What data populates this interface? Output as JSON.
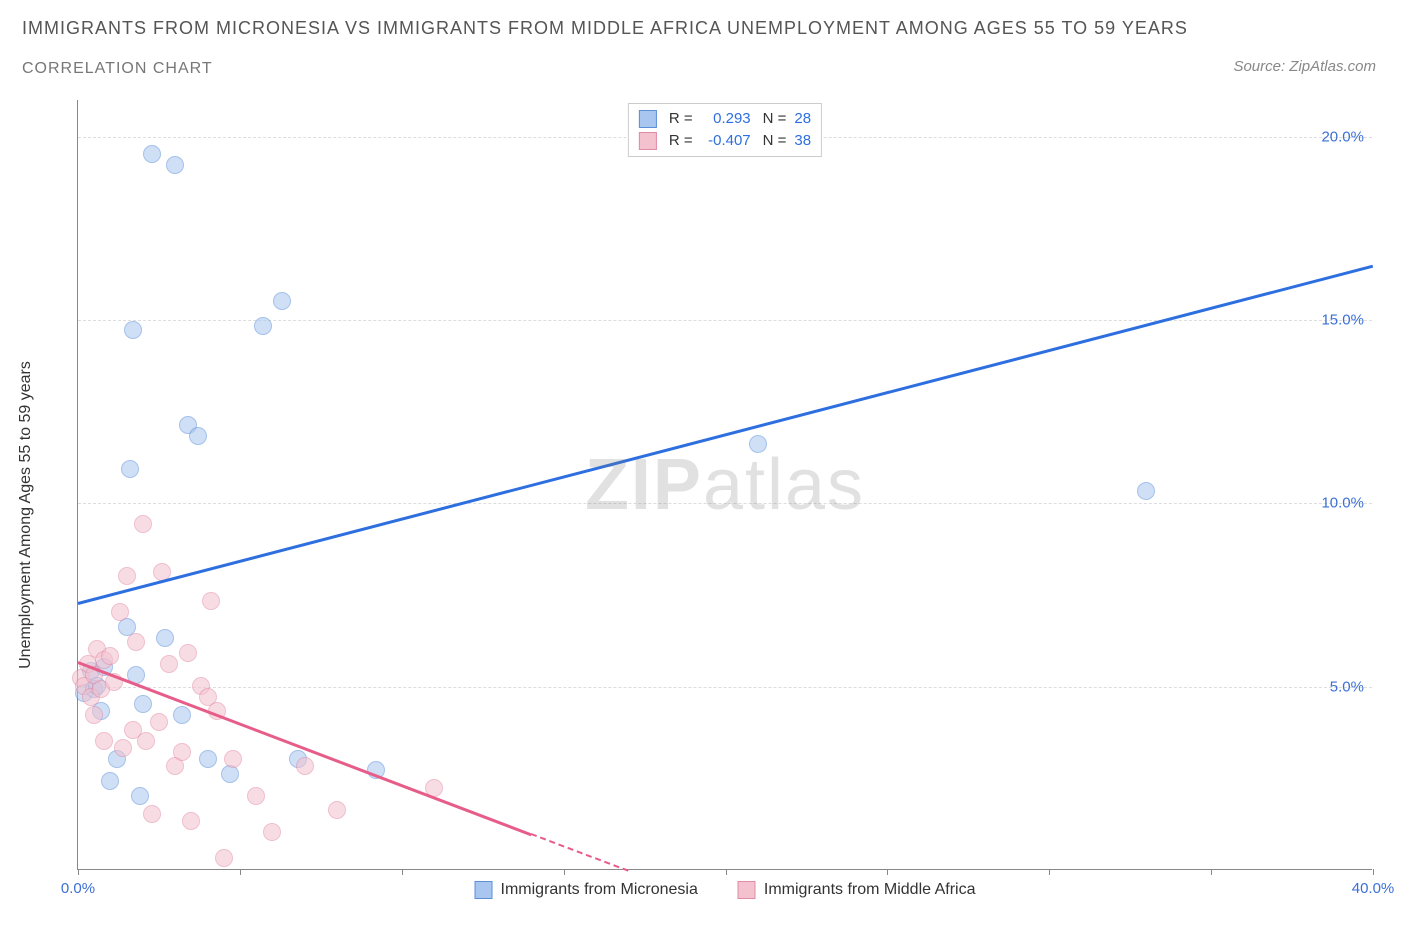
{
  "title": "IMMIGRANTS FROM MICRONESIA VS IMMIGRANTS FROM MIDDLE AFRICA UNEMPLOYMENT AMONG AGES 55 TO 59 YEARS",
  "subtitle": "CORRELATION CHART",
  "source": "Source: ZipAtlas.com",
  "watermark_bold": "ZIP",
  "watermark_rest": "atlas",
  "y_axis_label": "Unemployment Among Ages 55 to 59 years",
  "chart": {
    "type": "scatter",
    "xlim": [
      0,
      40
    ],
    "ylim": [
      0,
      21
    ],
    "x_ticks": [
      0,
      5,
      10,
      15,
      20,
      25,
      30,
      35,
      40
    ],
    "x_tick_labels": [
      "0.0%",
      "",
      "",
      "",
      "",
      "",
      "",
      "",
      "40.0%"
    ],
    "y_ticks": [
      5,
      10,
      15,
      20
    ],
    "y_tick_labels": [
      "5.0%",
      "10.0%",
      "15.0%",
      "20.0%"
    ],
    "grid_color": "#dddddd",
    "background_color": "#ffffff",
    "x_tick_label_color_left": "#3b6fd6",
    "x_tick_label_color_right": "#3b6fd6",
    "y_tick_label_color": "#3b6fd6",
    "point_radius": 9,
    "point_opacity": 0.55,
    "series": [
      {
        "name": "Immigrants from Micronesia",
        "color_fill": "#a9c6f0",
        "color_stroke": "#5b8fd8",
        "R": "0.293",
        "N": "28",
        "trend": {
          "x1": 0,
          "y1": 7.3,
          "x2": 40,
          "y2": 16.5,
          "color": "#2e6fe0",
          "width": 3
        },
        "points": [
          {
            "x": 0.2,
            "y": 4.8
          },
          {
            "x": 0.4,
            "y": 5.4
          },
          {
            "x": 0.5,
            "y": 4.9
          },
          {
            "x": 0.6,
            "y": 5.0
          },
          {
            "x": 0.7,
            "y": 4.3
          },
          {
            "x": 0.8,
            "y": 5.5
          },
          {
            "x": 1.0,
            "y": 2.4
          },
          {
            "x": 1.2,
            "y": 3.0
          },
          {
            "x": 1.5,
            "y": 6.6
          },
          {
            "x": 1.6,
            "y": 10.9
          },
          {
            "x": 1.7,
            "y": 14.7
          },
          {
            "x": 1.8,
            "y": 5.3
          },
          {
            "x": 1.9,
            "y": 2.0
          },
          {
            "x": 2.0,
            "y": 4.5
          },
          {
            "x": 2.3,
            "y": 19.5
          },
          {
            "x": 2.7,
            "y": 6.3
          },
          {
            "x": 3.0,
            "y": 19.2
          },
          {
            "x": 3.2,
            "y": 4.2
          },
          {
            "x": 3.4,
            "y": 12.1
          },
          {
            "x": 3.7,
            "y": 11.8
          },
          {
            "x": 4.0,
            "y": 3.0
          },
          {
            "x": 4.7,
            "y": 2.6
          },
          {
            "x": 5.7,
            "y": 14.8
          },
          {
            "x": 6.3,
            "y": 15.5
          },
          {
            "x": 6.8,
            "y": 3.0
          },
          {
            "x": 9.2,
            "y": 2.7
          },
          {
            "x": 21.0,
            "y": 11.6
          },
          {
            "x": 33.0,
            "y": 10.3
          }
        ]
      },
      {
        "name": "Immigrants from Middle Africa",
        "color_fill": "#f4c1cf",
        "color_stroke": "#e28ba4",
        "R": "-0.407",
        "N": "38",
        "trend": {
          "x1": 0,
          "y1": 5.7,
          "x2": 14,
          "y2": 1.0,
          "color": "#e75d8a",
          "width": 2.5,
          "dash_x1": 14,
          "dash_y1": 1.0,
          "dash_x2": 17,
          "dash_y2": 0
        },
        "points": [
          {
            "x": 0.1,
            "y": 5.2
          },
          {
            "x": 0.2,
            "y": 5.0
          },
          {
            "x": 0.3,
            "y": 5.6
          },
          {
            "x": 0.4,
            "y": 4.7
          },
          {
            "x": 0.5,
            "y": 5.3
          },
          {
            "x": 0.5,
            "y": 4.2
          },
          {
            "x": 0.6,
            "y": 6.0
          },
          {
            "x": 0.7,
            "y": 4.9
          },
          {
            "x": 0.8,
            "y": 5.7
          },
          {
            "x": 0.8,
            "y": 3.5
          },
          {
            "x": 1.0,
            "y": 5.8
          },
          {
            "x": 1.1,
            "y": 5.1
          },
          {
            "x": 1.3,
            "y": 7.0
          },
          {
            "x": 1.4,
            "y": 3.3
          },
          {
            "x": 1.5,
            "y": 8.0
          },
          {
            "x": 1.7,
            "y": 3.8
          },
          {
            "x": 1.8,
            "y": 6.2
          },
          {
            "x": 2.0,
            "y": 9.4
          },
          {
            "x": 2.1,
            "y": 3.5
          },
          {
            "x": 2.3,
            "y": 1.5
          },
          {
            "x": 2.5,
            "y": 4.0
          },
          {
            "x": 2.6,
            "y": 8.1
          },
          {
            "x": 2.8,
            "y": 5.6
          },
          {
            "x": 3.0,
            "y": 2.8
          },
          {
            "x": 3.2,
            "y": 3.2
          },
          {
            "x": 3.4,
            "y": 5.9
          },
          {
            "x": 3.5,
            "y": 1.3
          },
          {
            "x": 3.8,
            "y": 5.0
          },
          {
            "x": 4.0,
            "y": 4.7
          },
          {
            "x": 4.1,
            "y": 7.3
          },
          {
            "x": 4.3,
            "y": 4.3
          },
          {
            "x": 4.5,
            "y": 0.3
          },
          {
            "x": 4.8,
            "y": 3.0
          },
          {
            "x": 5.5,
            "y": 2.0
          },
          {
            "x": 6.0,
            "y": 1.0
          },
          {
            "x": 7.0,
            "y": 2.8
          },
          {
            "x": 8.0,
            "y": 1.6
          },
          {
            "x": 11.0,
            "y": 2.2
          }
        ]
      }
    ]
  },
  "legend_top": {
    "R_label": "R =",
    "N_label": "N =",
    "stat_color": "#2e6fe0"
  },
  "legend_bottom_items": [
    {
      "label": "Immigrants from Micronesia",
      "fill": "#a9c6f0",
      "stroke": "#5b8fd8"
    },
    {
      "label": "Immigrants from Middle Africa",
      "fill": "#f4c1cf",
      "stroke": "#e28ba4"
    }
  ]
}
